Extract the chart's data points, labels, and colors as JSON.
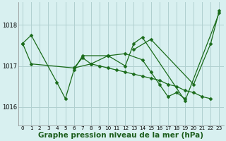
{
  "bg_color": "#d8f0f0",
  "grid_color": "#b0d0d0",
  "line_color": "#1a6b1a",
  "marker_color": "#1a6b1a",
  "xlabel": "Graphe pression niveau de la mer (hPa)",
  "xlabel_fontsize": 7.5,
  "yticks": [
    1016,
    1017,
    1018
  ],
  "xticks": [
    0,
    1,
    2,
    3,
    4,
    5,
    6,
    7,
    8,
    9,
    10,
    11,
    12,
    13,
    14,
    15,
    16,
    17,
    18,
    19,
    20,
    21,
    22,
    23
  ],
  "xlim": [
    -0.5,
    23.5
  ],
  "ylim": [
    1015.55,
    1018.55
  ],
  "series": [
    {
      "x": [
        0,
        1,
        4,
        5,
        6,
        7,
        10,
        12,
        13,
        14,
        19,
        23
      ],
      "y": [
        1017.55,
        1017.75,
        1016.6,
        1016.2,
        1016.9,
        1017.25,
        1017.25,
        1017.0,
        1017.55,
        1017.7,
        1016.15,
        1018.3
      ]
    },
    {
      "x": [
        6,
        8,
        10,
        12,
        14,
        15,
        16,
        17,
        18,
        19
      ],
      "y": [
        1016.95,
        1017.05,
        1017.25,
        1017.3,
        1017.15,
        1016.85,
        1016.55,
        1016.25,
        1016.35,
        1016.2
      ]
    },
    {
      "x": [
        13,
        15,
        20,
        22,
        23
      ],
      "y": [
        1017.4,
        1017.65,
        1016.55,
        1017.55,
        1018.35
      ]
    },
    {
      "x": [
        0,
        1,
        6,
        7,
        8,
        9,
        10,
        11,
        12,
        13,
        14,
        15,
        16,
        17,
        18,
        19,
        20,
        21,
        22
      ],
      "y": [
        1017.55,
        1017.05,
        1016.95,
        1017.2,
        1017.05,
        1017.0,
        1016.95,
        1016.9,
        1016.85,
        1016.8,
        1016.75,
        1016.7,
        1016.65,
        1016.55,
        1016.5,
        1016.4,
        1016.35,
        1016.25,
        1016.2
      ]
    }
  ]
}
